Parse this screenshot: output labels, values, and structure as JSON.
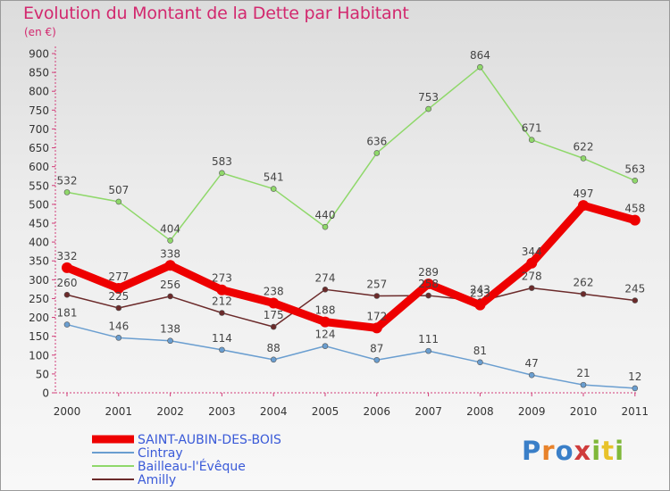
{
  "chart_data": {
    "type": "line",
    "title": "Evolution du Montant de la Dette par Habitant",
    "subtitle": "(en €)",
    "x": [
      "2000",
      "2001",
      "2002",
      "2003",
      "2004",
      "2005",
      "2006",
      "2007",
      "2008",
      "2009",
      "2010",
      "2011"
    ],
    "yticks": [
      0,
      50,
      100,
      150,
      200,
      250,
      300,
      350,
      400,
      450,
      500,
      550,
      600,
      650,
      700,
      750,
      800,
      850,
      900
    ],
    "ylim": [
      0,
      900
    ],
    "grid": false,
    "legend_position": "bottom-left",
    "series": [
      {
        "name": "SAINT-AUBIN-DES-BOIS",
        "color": "#ee0000",
        "width": 9,
        "values": [
          332,
          277,
          338,
          273,
          238,
          188,
          172,
          289,
          233,
          344,
          497,
          458
        ]
      },
      {
        "name": "Cintray",
        "color": "#6a9ed0",
        "width": 1.5,
        "values": [
          181,
          146,
          138,
          114,
          88,
          124,
          87,
          111,
          81,
          47,
          21,
          12
        ]
      },
      {
        "name": "Bailleau-l'Évêque",
        "color": "#8fd86a",
        "width": 1.5,
        "values": [
          532,
          507,
          404,
          583,
          541,
          440,
          636,
          753,
          864,
          671,
          622,
          563
        ]
      },
      {
        "name": "Amilly",
        "color": "#6b2a2a",
        "width": 1.5,
        "values": [
          260,
          225,
          256,
          212,
          175,
          274,
          257,
          258,
          243,
          278,
          262,
          245
        ]
      }
    ]
  },
  "logo": {
    "p": "P",
    "r": "r",
    "o": "o",
    "x": "x",
    "i": "i",
    "t": "t",
    "i2": "i"
  }
}
